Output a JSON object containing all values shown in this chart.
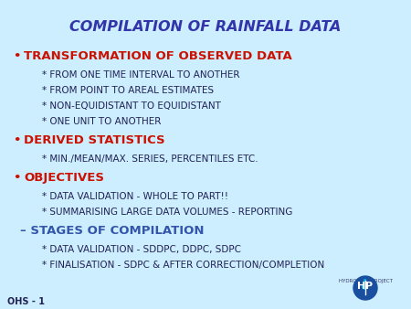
{
  "title": "COMPILATION OF RAINFALL DATA",
  "title_color": "#3333aa",
  "title_fontsize": 11.5,
  "bg_color": "#cceeff",
  "bullet_color": "#cc1100",
  "sub_color": "#222255",
  "stage_color": "#3355aa",
  "bullet_items": [
    "TRANSFORMATION OF OBSERVED DATA",
    "DERIVED STATISTICS",
    "OBJECTIVES"
  ],
  "sub_items_1": [
    "* FROM ONE TIME INTERVAL TO ANOTHER",
    "* FROM POINT TO AREAL ESTIMATES",
    "* NON-EQUIDISTANT TO EQUIDISTANT",
    "* ONE UNIT TO ANOTHER"
  ],
  "sub_items_2": [
    "* MIN./MEAN/MAX. SERIES, PERCENTILES ETC."
  ],
  "sub_items_3": [
    "* DATA VALIDATION - WHOLE TO PART!!",
    "* SUMMARISING LARGE DATA VOLUMES - REPORTING"
  ],
  "dash_item": "– STAGES OF COMPILATION",
  "dash_sub_items": [
    "* DATA VALIDATION - SDDPC, DDPC, SDPC",
    "* FINALISATION - SDPC & AFTER CORRECTION/COMPLETION"
  ],
  "footer_left": "OHS - 1",
  "footer_color": "#222255"
}
